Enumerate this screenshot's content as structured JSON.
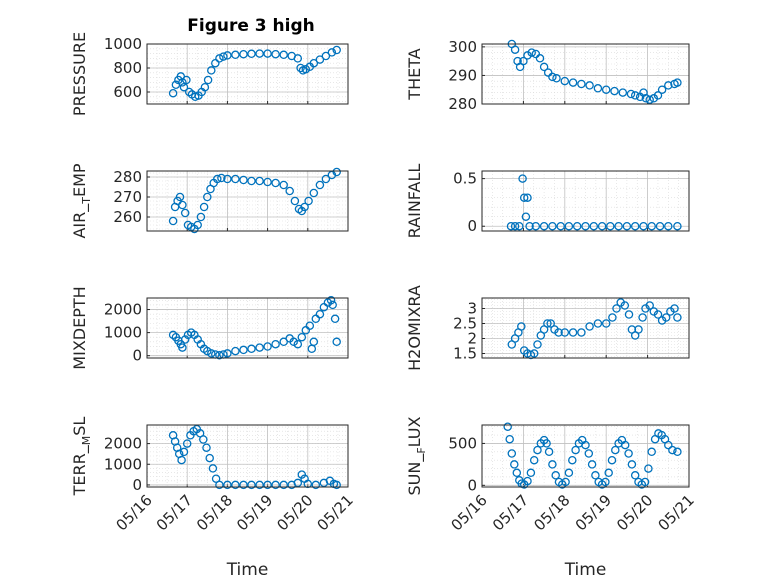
{
  "figure": {
    "title": "Figure 3 high"
  },
  "chart_data": [
    {
      "id": "p0",
      "type": "scatter",
      "ylabel": "PRESSURE",
      "xlabel": "",
      "xlim": [
        "05/16",
        "05/21"
      ],
      "xticks": [
        "05/16",
        "05/17",
        "05/18",
        "05/19",
        "05/20",
        "05/21"
      ],
      "ylim": [
        500,
        1000
      ],
      "yticks": [
        600,
        800,
        1000
      ],
      "grid": true,
      "points": [
        [
          0.65,
          590
        ],
        [
          0.72,
          660
        ],
        [
          0.78,
          700
        ],
        [
          0.84,
          730
        ],
        [
          0.88,
          680
        ],
        [
          0.92,
          640
        ],
        [
          0.98,
          700
        ],
        [
          1.05,
          600
        ],
        [
          1.12,
          580
        ],
        [
          1.2,
          560
        ],
        [
          1.28,
          570
        ],
        [
          1.36,
          600
        ],
        [
          1.44,
          640
        ],
        [
          1.52,
          700
        ],
        [
          1.6,
          780
        ],
        [
          1.7,
          840
        ],
        [
          1.8,
          880
        ],
        [
          1.9,
          895
        ],
        [
          2.0,
          905
        ],
        [
          2.2,
          910
        ],
        [
          2.4,
          915
        ],
        [
          2.6,
          918
        ],
        [
          2.8,
          920
        ],
        [
          3.0,
          920
        ],
        [
          3.2,
          915
        ],
        [
          3.4,
          910
        ],
        [
          3.6,
          900
        ],
        [
          3.75,
          880
        ],
        [
          3.82,
          800
        ],
        [
          3.88,
          780
        ],
        [
          3.95,
          790
        ],
        [
          4.05,
          810
        ],
        [
          4.15,
          840
        ],
        [
          4.3,
          870
        ],
        [
          4.45,
          900
        ],
        [
          4.6,
          930
        ],
        [
          4.72,
          950
        ]
      ]
    },
    {
      "id": "p1",
      "type": "scatter",
      "ylabel": "THETA",
      "xlabel": "",
      "xlim": [
        "05/16",
        "05/21"
      ],
      "xticks": [
        "05/16",
        "05/17",
        "05/18",
        "05/19",
        "05/20",
        "05/21"
      ],
      "ylim": [
        280,
        301
      ],
      "yticks": [
        280,
        290,
        300
      ],
      "grid": true,
      "points": [
        [
          0.72,
          301
        ],
        [
          0.8,
          299
        ],
        [
          0.86,
          295
        ],
        [
          0.92,
          293
        ],
        [
          1.0,
          295
        ],
        [
          1.1,
          297
        ],
        [
          1.2,
          298
        ],
        [
          1.3,
          297.5
        ],
        [
          1.4,
          296
        ],
        [
          1.5,
          293
        ],
        [
          1.6,
          291
        ],
        [
          1.7,
          289.5
        ],
        [
          1.8,
          289
        ],
        [
          2.0,
          288
        ],
        [
          2.2,
          287.5
        ],
        [
          2.4,
          287
        ],
        [
          2.6,
          286.5
        ],
        [
          2.8,
          285.5
        ],
        [
          3.0,
          285
        ],
        [
          3.2,
          284.5
        ],
        [
          3.4,
          284
        ],
        [
          3.6,
          283.5
        ],
        [
          3.7,
          283
        ],
        [
          3.82,
          282.5
        ],
        [
          3.9,
          284
        ],
        [
          3.96,
          282
        ],
        [
          4.05,
          281.5
        ],
        [
          4.15,
          282
        ],
        [
          4.25,
          283
        ],
        [
          4.35,
          285
        ],
        [
          4.5,
          286.5
        ],
        [
          4.65,
          287
        ],
        [
          4.72,
          287.5
        ]
      ]
    },
    {
      "id": "p2",
      "type": "scatter",
      "ylabel": "AIR_TEMP",
      "xlabel": "",
      "xlim": [
        "05/16",
        "05/21"
      ],
      "xticks": [
        "05/16",
        "05/17",
        "05/18",
        "05/19",
        "05/20",
        "05/21"
      ],
      "ylim": [
        253,
        283
      ],
      "yticks": [
        260,
        270,
        280
      ],
      "grid": true,
      "points": [
        [
          0.65,
          258
        ],
        [
          0.7,
          265
        ],
        [
          0.76,
          268
        ],
        [
          0.82,
          270
        ],
        [
          0.88,
          266
        ],
        [
          0.95,
          262
        ],
        [
          1.02,
          256
        ],
        [
          1.1,
          255
        ],
        [
          1.18,
          254
        ],
        [
          1.26,
          256
        ],
        [
          1.34,
          260
        ],
        [
          1.42,
          265
        ],
        [
          1.5,
          270
        ],
        [
          1.58,
          274
        ],
        [
          1.66,
          277
        ],
        [
          1.75,
          279
        ],
        [
          1.85,
          279.5
        ],
        [
          2.0,
          279
        ],
        [
          2.2,
          279
        ],
        [
          2.4,
          278.5
        ],
        [
          2.6,
          278
        ],
        [
          2.8,
          278
        ],
        [
          3.0,
          277.5
        ],
        [
          3.2,
          277
        ],
        [
          3.4,
          276
        ],
        [
          3.55,
          273
        ],
        [
          3.68,
          268
        ],
        [
          3.78,
          264
        ],
        [
          3.85,
          263
        ],
        [
          3.92,
          265
        ],
        [
          4.02,
          268
        ],
        [
          4.15,
          272
        ],
        [
          4.3,
          276
        ],
        [
          4.45,
          279
        ],
        [
          4.6,
          281
        ],
        [
          4.72,
          282.5
        ]
      ]
    },
    {
      "id": "p3",
      "type": "scatter",
      "ylabel": "RAINFALL",
      "xlabel": "",
      "xlim": [
        "05/16",
        "05/21"
      ],
      "xticks": [
        "05/16",
        "05/17",
        "05/18",
        "05/19",
        "05/20",
        "05/21"
      ],
      "ylim": [
        -0.05,
        0.58
      ],
      "yticks": [
        0,
        0.5
      ],
      "grid": true,
      "points": [
        [
          0.7,
          0
        ],
        [
          0.8,
          0
        ],
        [
          0.9,
          0
        ],
        [
          0.98,
          0.5
        ],
        [
          1.02,
          0.3
        ],
        [
          1.06,
          0.1
        ],
        [
          1.1,
          0.3
        ],
        [
          1.15,
          0
        ],
        [
          1.3,
          0
        ],
        [
          1.5,
          0
        ],
        [
          1.7,
          0
        ],
        [
          1.9,
          0
        ],
        [
          2.1,
          0
        ],
        [
          2.3,
          0
        ],
        [
          2.5,
          0
        ],
        [
          2.7,
          0
        ],
        [
          2.9,
          0
        ],
        [
          3.1,
          0
        ],
        [
          3.3,
          0
        ],
        [
          3.5,
          0
        ],
        [
          3.7,
          0
        ],
        [
          3.9,
          0
        ],
        [
          4.1,
          0
        ],
        [
          4.3,
          0
        ],
        [
          4.5,
          0
        ],
        [
          4.72,
          0
        ]
      ]
    },
    {
      "id": "p4",
      "type": "scatter",
      "ylabel": "MIXDEPTH",
      "xlabel": "",
      "xlim": [
        "05/16",
        "05/21"
      ],
      "xticks": [
        "05/16",
        "05/17",
        "05/18",
        "05/19",
        "05/20",
        "05/21"
      ],
      "ylim": [
        -100,
        2500
      ],
      "yticks": [
        0,
        1000,
        2000
      ],
      "grid": true,
      "points": [
        [
          0.65,
          900
        ],
        [
          0.72,
          800
        ],
        [
          0.78,
          650
        ],
        [
          0.84,
          500
        ],
        [
          0.88,
          350
        ],
        [
          0.95,
          700
        ],
        [
          1.02,
          900
        ],
        [
          1.1,
          1000
        ],
        [
          1.18,
          900
        ],
        [
          1.26,
          700
        ],
        [
          1.34,
          500
        ],
        [
          1.42,
          300
        ],
        [
          1.5,
          200
        ],
        [
          1.6,
          100
        ],
        [
          1.7,
          50
        ],
        [
          1.8,
          20
        ],
        [
          1.9,
          50
        ],
        [
          2.0,
          100
        ],
        [
          2.2,
          200
        ],
        [
          2.4,
          250
        ],
        [
          2.6,
          300
        ],
        [
          2.8,
          350
        ],
        [
          3.0,
          400
        ],
        [
          3.2,
          500
        ],
        [
          3.4,
          600
        ],
        [
          3.55,
          750
        ],
        [
          3.65,
          600
        ],
        [
          3.75,
          500
        ],
        [
          3.85,
          800
        ],
        [
          3.95,
          1100
        ],
        [
          4.05,
          1300
        ],
        [
          4.1,
          300
        ],
        [
          4.15,
          600
        ],
        [
          4.2,
          1600
        ],
        [
          4.3,
          1800
        ],
        [
          4.4,
          2100
        ],
        [
          4.5,
          2300
        ],
        [
          4.58,
          2400
        ],
        [
          4.62,
          2200
        ],
        [
          4.68,
          1600
        ],
        [
          4.72,
          600
        ]
      ]
    },
    {
      "id": "p5",
      "type": "scatter",
      "ylabel": "H2OMIXRA",
      "xlabel": "",
      "xlim": [
        "05/16",
        "05/21"
      ],
      "xticks": [
        "05/16",
        "05/17",
        "05/18",
        "05/19",
        "05/20",
        "05/21"
      ],
      "ylim": [
        1.35,
        3.35
      ],
      "yticks": [
        1.5,
        2,
        2.5,
        3
      ],
      "grid": true,
      "points": [
        [
          0.72,
          1.8
        ],
        [
          0.8,
          2.0
        ],
        [
          0.88,
          2.2
        ],
        [
          0.95,
          2.4
        ],
        [
          1.02,
          1.6
        ],
        [
          1.1,
          1.5
        ],
        [
          1.18,
          1.45
        ],
        [
          1.26,
          1.5
        ],
        [
          1.34,
          1.8
        ],
        [
          1.42,
          2.1
        ],
        [
          1.5,
          2.3
        ],
        [
          1.58,
          2.5
        ],
        [
          1.66,
          2.5
        ],
        [
          1.75,
          2.3
        ],
        [
          1.85,
          2.2
        ],
        [
          2.0,
          2.2
        ],
        [
          2.2,
          2.2
        ],
        [
          2.4,
          2.2
        ],
        [
          2.6,
          2.4
        ],
        [
          2.8,
          2.5
        ],
        [
          3.0,
          2.5
        ],
        [
          3.15,
          2.7
        ],
        [
          3.25,
          3.0
        ],
        [
          3.35,
          3.2
        ],
        [
          3.45,
          3.1
        ],
        [
          3.55,
          2.8
        ],
        [
          3.62,
          2.3
        ],
        [
          3.7,
          2.1
        ],
        [
          3.78,
          2.3
        ],
        [
          3.88,
          2.7
        ],
        [
          3.95,
          3.0
        ],
        [
          4.05,
          3.1
        ],
        [
          4.15,
          2.9
        ],
        [
          4.25,
          2.8
        ],
        [
          4.35,
          2.6
        ],
        [
          4.45,
          2.7
        ],
        [
          4.55,
          2.9
        ],
        [
          4.65,
          3.0
        ],
        [
          4.72,
          2.7
        ]
      ]
    },
    {
      "id": "p6",
      "type": "scatter",
      "ylabel": "TERR_MSL",
      "xlabel": "Time",
      "xlim": [
        "05/16",
        "05/21"
      ],
      "xticks": [
        "05/16",
        "05/17",
        "05/18",
        "05/19",
        "05/20",
        "05/21"
      ],
      "ylim": [
        -100,
        2900
      ],
      "yticks": [
        0,
        1000,
        2000
      ],
      "grid": true,
      "points": [
        [
          0.65,
          2400
        ],
        [
          0.7,
          2100
        ],
        [
          0.75,
          1800
        ],
        [
          0.8,
          1500
        ],
        [
          0.86,
          1200
        ],
        [
          0.92,
          1600
        ],
        [
          1.0,
          2000
        ],
        [
          1.08,
          2400
        ],
        [
          1.16,
          2600
        ],
        [
          1.24,
          2700
        ],
        [
          1.32,
          2500
        ],
        [
          1.4,
          2200
        ],
        [
          1.48,
          1800
        ],
        [
          1.56,
          1300
        ],
        [
          1.64,
          800
        ],
        [
          1.72,
          300
        ],
        [
          1.8,
          0
        ],
        [
          2.0,
          0
        ],
        [
          2.2,
          0
        ],
        [
          2.4,
          0
        ],
        [
          2.6,
          0
        ],
        [
          2.8,
          0
        ],
        [
          3.0,
          0
        ],
        [
          3.2,
          0
        ],
        [
          3.4,
          0
        ],
        [
          3.6,
          0
        ],
        [
          3.75,
          100
        ],
        [
          3.85,
          500
        ],
        [
          3.92,
          300
        ],
        [
          4.0,
          50
        ],
        [
          4.2,
          0
        ],
        [
          4.4,
          100
        ],
        [
          4.55,
          200
        ],
        [
          4.65,
          50
        ],
        [
          4.72,
          0
        ]
      ]
    },
    {
      "id": "p7",
      "type": "scatter",
      "ylabel": "SUN_FLUX",
      "xlabel": "Time",
      "xlim": [
        "05/16",
        "05/21"
      ],
      "xticks": [
        "05/16",
        "05/17",
        "05/18",
        "05/19",
        "05/20",
        "05/21"
      ],
      "ylim": [
        -20,
        720
      ],
      "yticks": [
        0,
        500
      ],
      "grid": true,
      "points": [
        [
          0.62,
          700
        ],
        [
          0.67,
          550
        ],
        [
          0.72,
          380
        ],
        [
          0.78,
          250
        ],
        [
          0.84,
          150
        ],
        [
          0.9,
          60
        ],
        [
          0.96,
          20
        ],
        [
          1.02,
          10
        ],
        [
          1.1,
          50
        ],
        [
          1.18,
          150
        ],
        [
          1.26,
          300
        ],
        [
          1.34,
          420
        ],
        [
          1.42,
          500
        ],
        [
          1.5,
          540
        ],
        [
          1.56,
          500
        ],
        [
          1.62,
          400
        ],
        [
          1.7,
          250
        ],
        [
          1.78,
          120
        ],
        [
          1.86,
          40
        ],
        [
          1.94,
          10
        ],
        [
          2.02,
          40
        ],
        [
          2.1,
          150
        ],
        [
          2.18,
          300
        ],
        [
          2.26,
          420
        ],
        [
          2.34,
          500
        ],
        [
          2.42,
          540
        ],
        [
          2.5,
          480
        ],
        [
          2.58,
          380
        ],
        [
          2.66,
          250
        ],
        [
          2.74,
          120
        ],
        [
          2.82,
          40
        ],
        [
          2.9,
          10
        ],
        [
          2.98,
          40
        ],
        [
          3.06,
          150
        ],
        [
          3.14,
          300
        ],
        [
          3.22,
          420
        ],
        [
          3.3,
          500
        ],
        [
          3.38,
          540
        ],
        [
          3.46,
          480
        ],
        [
          3.54,
          380
        ],
        [
          3.62,
          250
        ],
        [
          3.7,
          120
        ],
        [
          3.78,
          40
        ],
        [
          3.86,
          10
        ],
        [
          3.94,
          40
        ],
        [
          4.02,
          200
        ],
        [
          4.1,
          400
        ],
        [
          4.18,
          550
        ],
        [
          4.26,
          620
        ],
        [
          4.34,
          600
        ],
        [
          4.42,
          550
        ],
        [
          4.5,
          480
        ],
        [
          4.6,
          420
        ],
        [
          4.72,
          400
        ]
      ]
    }
  ]
}
